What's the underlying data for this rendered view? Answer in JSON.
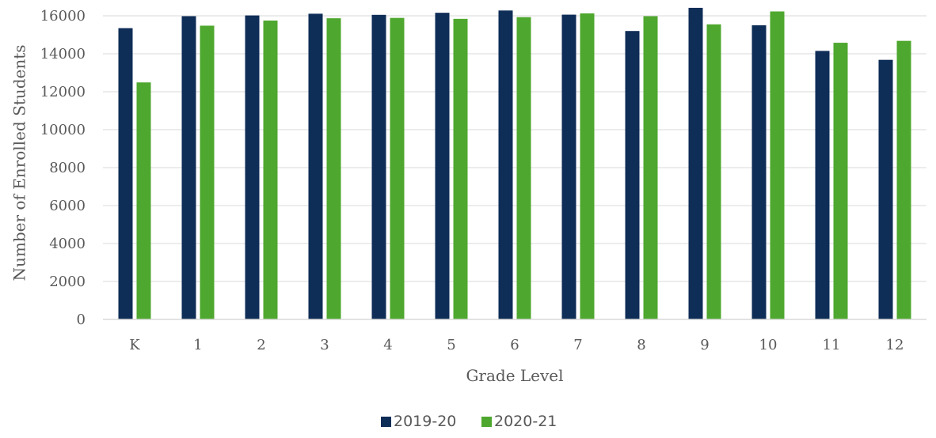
{
  "chart_data": {
    "type": "bar",
    "title": "",
    "xlabel": "Grade Level",
    "ylabel": "Number of Enrolled Students",
    "categories": [
      "K",
      "1",
      "2",
      "3",
      "4",
      "5",
      "6",
      "7",
      "8",
      "9",
      "10",
      "11",
      "12"
    ],
    "series": [
      {
        "name": "2019-20",
        "color": "#0e2d57",
        "values": [
          15350,
          15980,
          16020,
          16110,
          16050,
          16160,
          16280,
          16060,
          15200,
          16420,
          15500,
          14150,
          13680
        ]
      },
      {
        "name": "2020-21",
        "color": "#4ea72e",
        "values": [
          12490,
          15480,
          15750,
          15870,
          15890,
          15840,
          15930,
          16130,
          15980,
          15550,
          16230,
          14580,
          14680
        ]
      }
    ],
    "ylim": [
      0,
      16000
    ],
    "yticks": [
      0,
      2000,
      4000,
      6000,
      8000,
      10000,
      12000,
      14000,
      16000
    ],
    "grid": true,
    "legend_position": "bottom"
  }
}
